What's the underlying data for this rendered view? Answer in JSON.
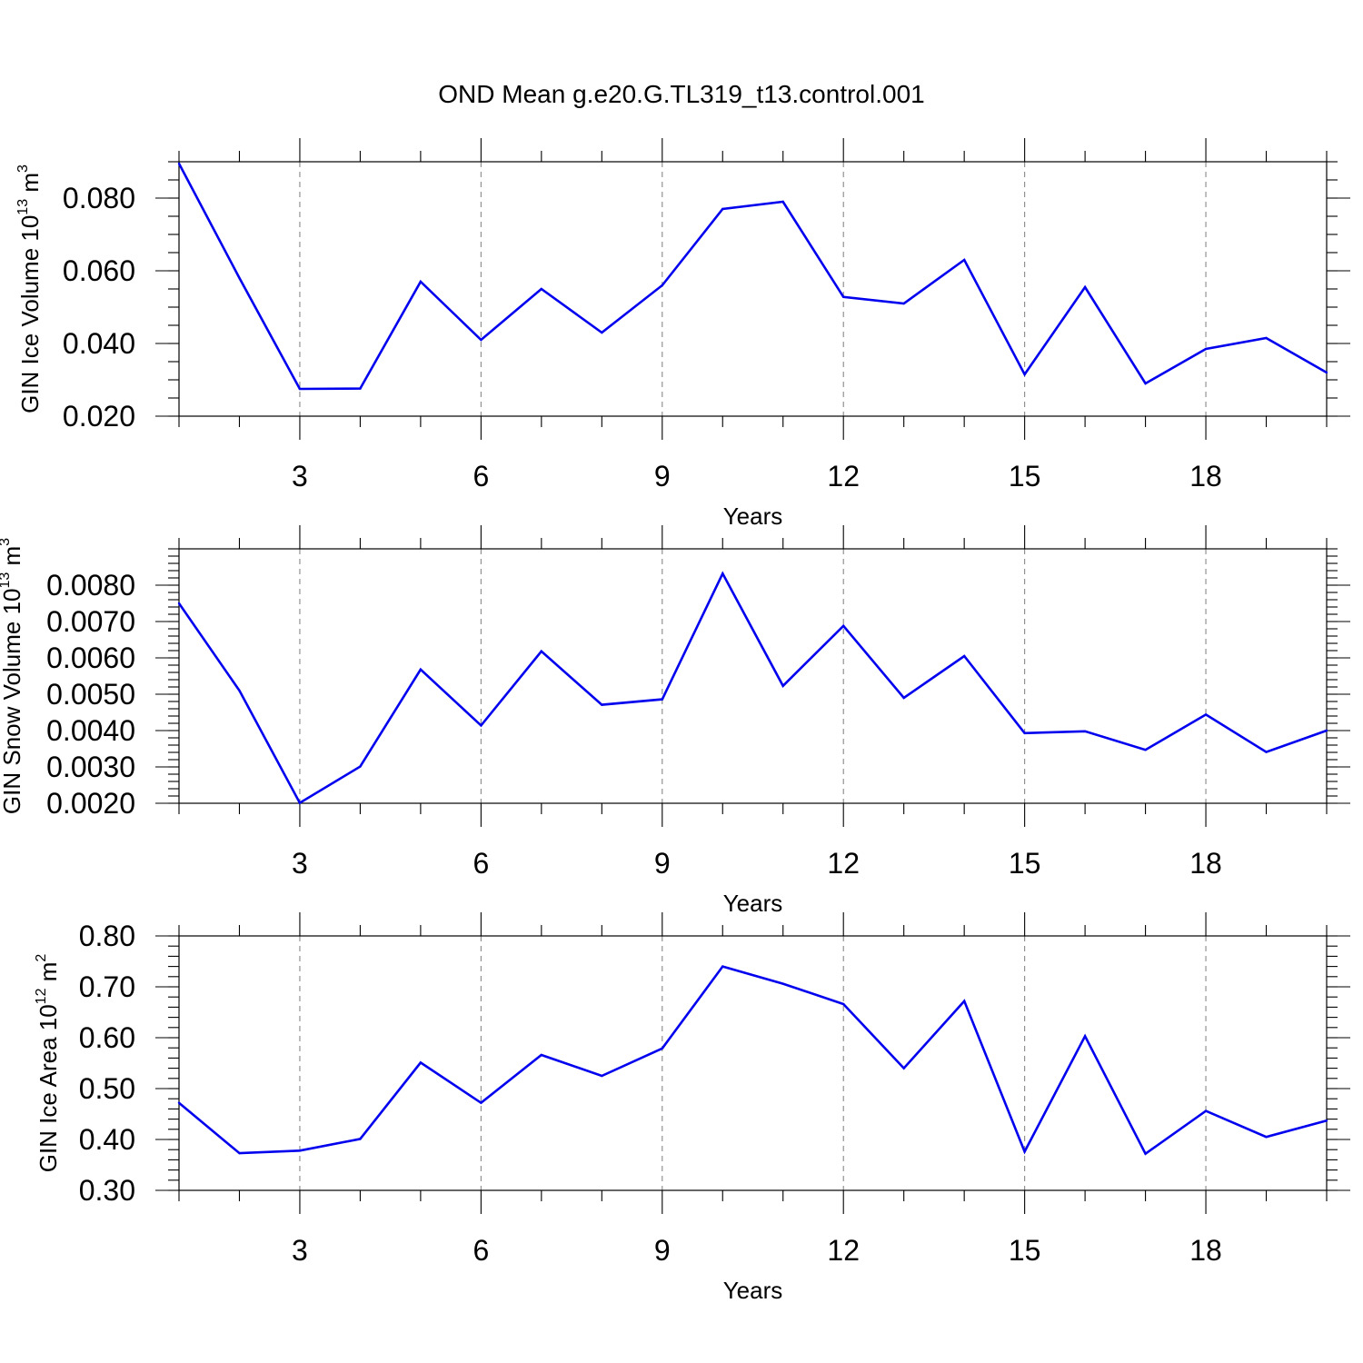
{
  "title": "OND Mean g.e20.G.TL319_t13.control.001",
  "colors": {
    "line": "#0000ee",
    "frame": "#000000",
    "grid": "#888888"
  },
  "chart_data": [
    {
      "type": "line",
      "ylabel": {
        "text": "GIN Ice Volume 10",
        "exp": "13",
        "unit": " m",
        "unit_exp": "3"
      },
      "xlabel": "Years",
      "xlim": [
        1,
        20
      ],
      "ylim": [
        0.02,
        0.09
      ],
      "x_major_ticks": [
        3,
        6,
        9,
        12,
        15,
        18
      ],
      "y_major_ticks": [
        0.02,
        0.04,
        0.06,
        0.08
      ],
      "y_minor_step": 0.005,
      "y_tick_labels": [
        "0.020",
        "0.040",
        "0.060",
        "0.080"
      ],
      "x_tick_labels": [
        "3",
        "6",
        "9",
        "12",
        "15",
        "18"
      ],
      "grid": "x-major dashed",
      "x": [
        1,
        2,
        3,
        4,
        5,
        6,
        7,
        8,
        9,
        10,
        11,
        12,
        13,
        14,
        15,
        16,
        17,
        18,
        19,
        20
      ],
      "values": [
        0.0895,
        0.058,
        0.0275,
        0.0276,
        0.057,
        0.041,
        0.055,
        0.043,
        0.056,
        0.077,
        0.079,
        0.0528,
        0.051,
        0.063,
        0.0315,
        0.0555,
        0.029,
        0.0385,
        0.0415,
        0.032
      ]
    },
    {
      "type": "line",
      "ylabel": {
        "text": "GIN Snow Volume 10",
        "exp": "13",
        "unit": " m",
        "unit_exp": "3"
      },
      "xlabel": "Years",
      "xlim": [
        1,
        20
      ],
      "ylim": [
        0.002,
        0.009
      ],
      "x_major_ticks": [
        3,
        6,
        9,
        12,
        15,
        18
      ],
      "y_major_ticks": [
        0.002,
        0.003,
        0.004,
        0.005,
        0.006,
        0.007,
        0.008
      ],
      "y_minor_step": 0.0002,
      "y_tick_labels": [
        "0.0020",
        "0.0030",
        "0.0040",
        "0.0050",
        "0.0060",
        "0.0070",
        "0.0080"
      ],
      "x_tick_labels": [
        "3",
        "6",
        "9",
        "12",
        "15",
        "18"
      ],
      "grid": "x-major dashed",
      "x": [
        1,
        2,
        3,
        4,
        5,
        6,
        7,
        8,
        9,
        10,
        11,
        12,
        13,
        14,
        15,
        16,
        17,
        18,
        19,
        20
      ],
      "values": [
        0.0075,
        0.0051,
        0.00201,
        0.00301,
        0.00568,
        0.00414,
        0.00618,
        0.00471,
        0.00486,
        0.00832,
        0.00523,
        0.00688,
        0.0049,
        0.00605,
        0.00393,
        0.00398,
        0.00347,
        0.00444,
        0.00341,
        0.004
      ]
    },
    {
      "type": "line",
      "ylabel": {
        "text": "GIN Ice Area 10",
        "exp": "12",
        "unit": " m",
        "unit_exp": "2"
      },
      "xlabel": "Years",
      "xlim": [
        1,
        20
      ],
      "ylim": [
        0.3,
        0.8
      ],
      "x_major_ticks": [
        3,
        6,
        9,
        12,
        15,
        18
      ],
      "y_major_ticks": [
        0.3,
        0.4,
        0.5,
        0.6,
        0.7,
        0.8
      ],
      "y_minor_step": 0.02,
      "y_tick_labels": [
        "0.30",
        "0.40",
        "0.50",
        "0.60",
        "0.70",
        "0.80"
      ],
      "x_tick_labels": [
        "3",
        "6",
        "9",
        "12",
        "15",
        "18"
      ],
      "grid": "x-major dashed",
      "x": [
        1,
        2,
        3,
        4,
        5,
        6,
        7,
        8,
        9,
        10,
        11,
        12,
        13,
        14,
        15,
        16,
        17,
        18,
        19,
        20
      ],
      "values": [
        0.472,
        0.373,
        0.378,
        0.401,
        0.551,
        0.472,
        0.566,
        0.525,
        0.579,
        0.74,
        0.706,
        0.666,
        0.54,
        0.672,
        0.376,
        0.603,
        0.372,
        0.456,
        0.405,
        0.437
      ]
    }
  ]
}
